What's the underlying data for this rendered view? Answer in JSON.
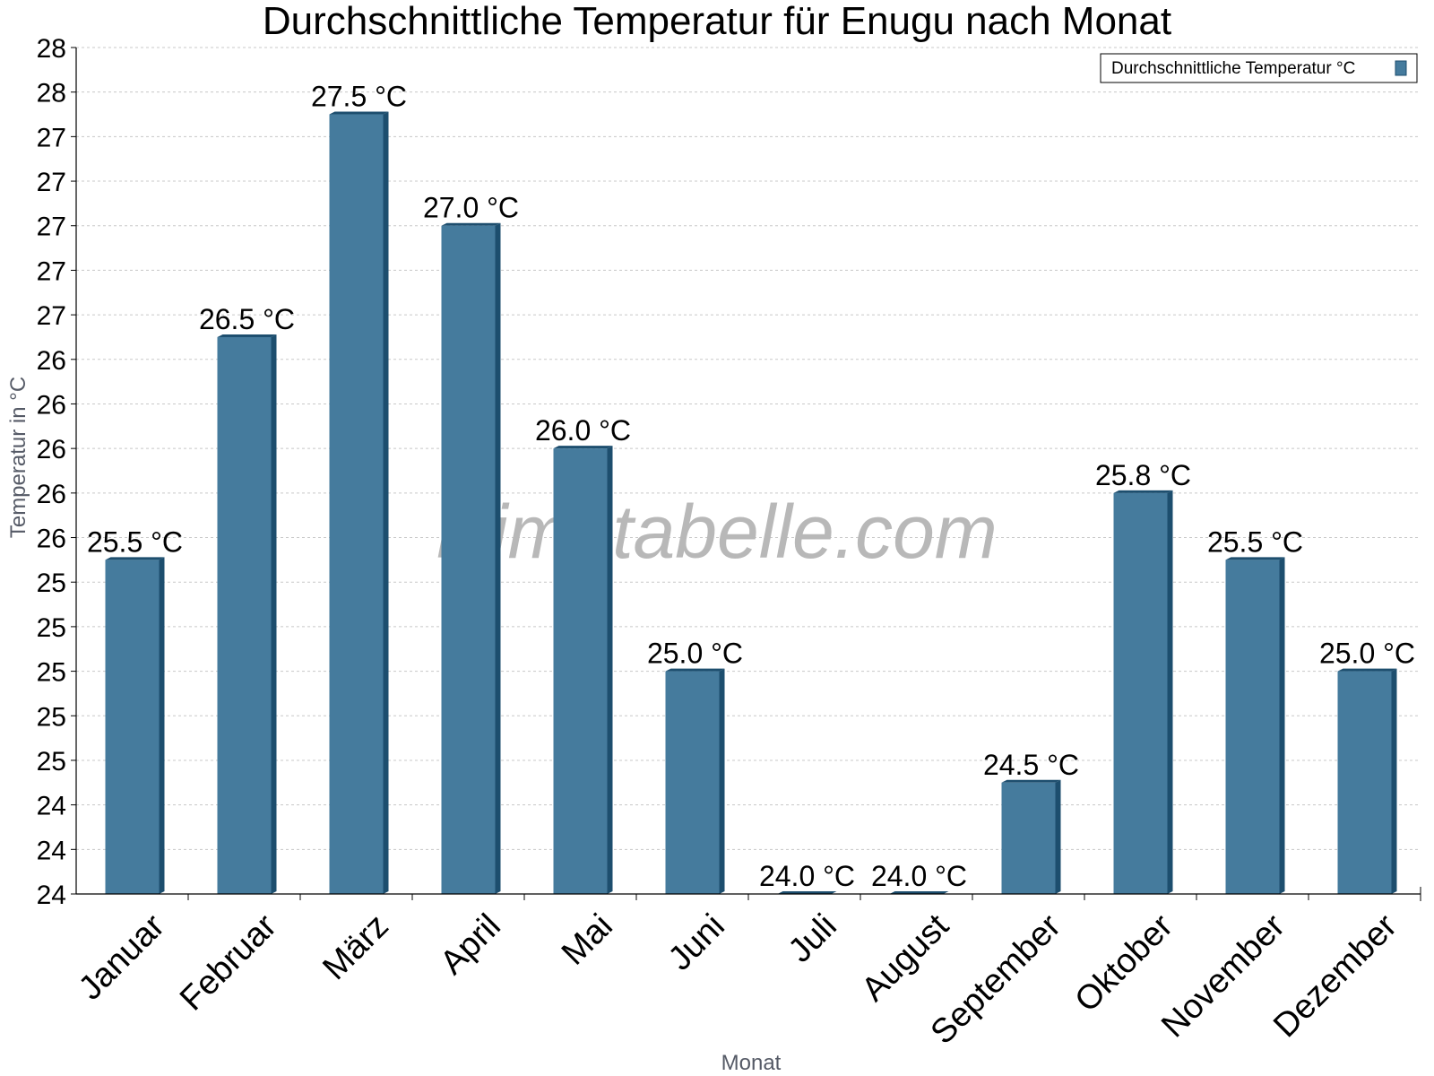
{
  "chart_data": {
    "type": "bar",
    "title": "Durchschnittliche Temperatur für Enugu nach Monat",
    "xlabel": "Monat",
    "ylabel": "Temperatur in °C",
    "categories": [
      "Januar",
      "Februar",
      "März",
      "April",
      "Mai",
      "Juni",
      "Juli",
      "August",
      "September",
      "Oktober",
      "November",
      "Dezember"
    ],
    "series": [
      {
        "name": "Durchschnittliche Temperatur °C",
        "values": [
          25.5,
          26.5,
          27.5,
          27.0,
          26.0,
          25.0,
          24.0,
          24.0,
          24.5,
          25.8,
          25.5,
          25.0
        ],
        "labels": [
          "25.5 °C",
          "26.5 °C",
          "27.5 °C",
          "27.0 °C",
          "26.0 °C",
          "25.0 °C",
          "24.0 °C",
          "24.0 °C",
          "24.5 °C",
          "25.8 °C",
          "25.5 °C",
          "25.0 °C"
        ]
      }
    ],
    "ylim": [
      24,
      27.8
    ],
    "yticks": [
      24,
      24.2,
      24.4,
      24.6,
      24.8,
      25,
      25.2,
      25.4,
      25.6,
      25.8,
      26,
      26.2,
      26.4,
      26.6,
      26.8,
      27,
      27.2,
      27.4,
      27.6,
      27.8
    ],
    "ytick_labels": [
      "24",
      "24",
      "24",
      "25",
      "25",
      "25",
      "25",
      "25",
      "26",
      "26",
      "26",
      "26",
      "26",
      "27",
      "27",
      "27",
      "27",
      "27",
      "28",
      "28"
    ],
    "grid": true,
    "legend_position": "top-right",
    "watermark": "klimatabelle.com",
    "colors": {
      "bar": "#457b9d",
      "bar_dark": "#1d4e6e",
      "grid": "#c8c8c8",
      "axis": "#000000"
    }
  }
}
